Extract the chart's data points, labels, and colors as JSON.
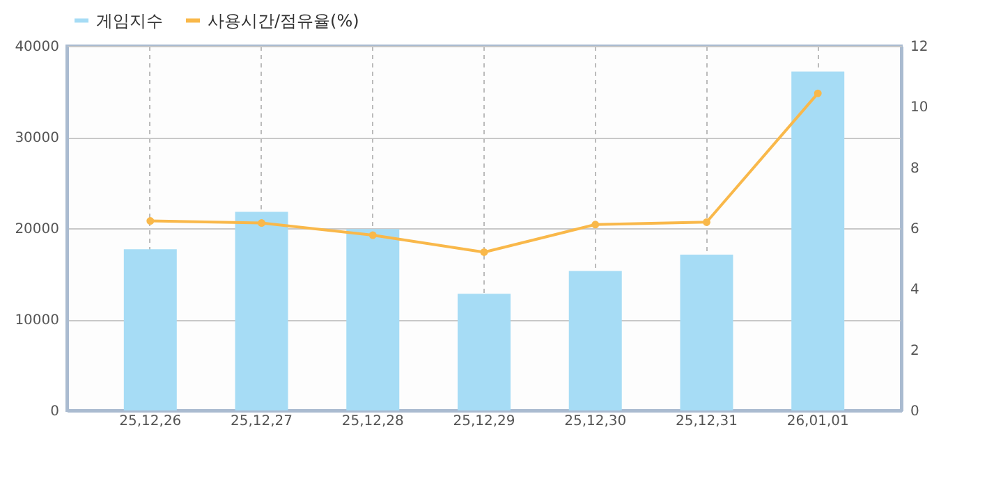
{
  "chart_data": {
    "type": "bar",
    "categories": [
      "25,12,26",
      "25,12,27",
      "25,12,28",
      "25,12,29",
      "25,12,30",
      "25,12,31",
      "26,01,01"
    ],
    "series": [
      {
        "name": "게임지수",
        "color": "#a6dcf5",
        "values": [
          17700,
          21800,
          19900,
          12800,
          15300,
          17100,
          37200
        ]
      },
      {
        "name": "사용시간/점유율(%)",
        "type": "line",
        "axis": "y2",
        "color": "#f9b84a",
        "values": [
          6.24,
          6.17,
          5.77,
          5.21,
          6.12,
          6.2,
          10.44
        ]
      }
    ],
    "ylim": [
      0,
      40000
    ],
    "yticks": [
      0,
      10000,
      20000,
      30000,
      40000
    ],
    "y2lim": [
      0,
      12
    ],
    "y2ticks": [
      0,
      2,
      4,
      6,
      8,
      10,
      12
    ],
    "grid": true,
    "legend": "top left",
    "marker": "circle",
    "line_style": "solid"
  }
}
